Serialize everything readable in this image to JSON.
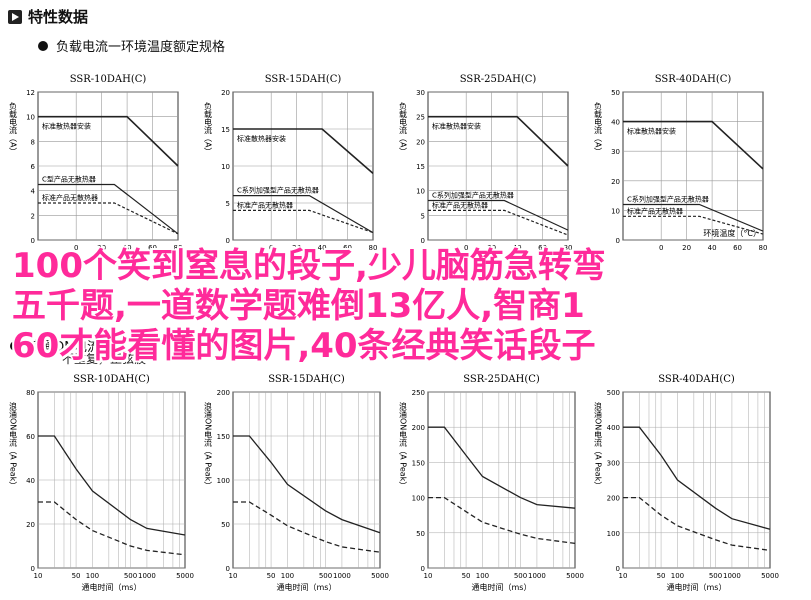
{
  "header": {
    "title": "特性数据"
  },
  "section1": {
    "bullet": "负载电流一环境温度额定规格"
  },
  "section2": {
    "bullet": "浪涌ON电流耐量",
    "note": "不重复，正弦波"
  },
  "top_charts": {
    "ylabel": "负载电流（A）",
    "xlabel": "环境温度（°C）",
    "xticks": [
      "0",
      "20",
      "40",
      "60",
      "80"
    ],
    "charts": [
      {
        "title": "SSR-10DAH(C)",
        "yticks": [
          "0",
          "2",
          "4",
          "6",
          "8",
          "10",
          "12"
        ],
        "labels": [
          "标准散热器安装",
          "C型产品无散热器",
          "标准产品无散热器"
        ]
      },
      {
        "title": "SSR-15DAH(C)",
        "yticks": [
          "0",
          "5",
          "10",
          "15",
          "20"
        ],
        "labels": [
          "标准散热器安装",
          "C系列加强型产品无散热器",
          "标准产品无散热器"
        ]
      },
      {
        "title": "SSR-25DAH(C)",
        "yticks": [
          "0",
          "5",
          "10",
          "15",
          "20",
          "25",
          "30"
        ],
        "labels": [
          "标准散热器安装",
          "C系列加强型产品无散热器",
          "标准产品无散热器"
        ]
      },
      {
        "title": "SSR-40DAH(C)",
        "yticks": [
          "0",
          "10",
          "20",
          "30",
          "40",
          "50"
        ],
        "labels": [
          "标准散热器安装",
          "C系列加强型产品无散热器",
          "标准产品无散热器"
        ]
      }
    ]
  },
  "bottom_charts": {
    "ylabel": "浪涌ON电流（A Peak）",
    "xlabel": "通电时间（ms）",
    "xticks": [
      "10",
      "50",
      "100",
      "500",
      "1000",
      "5000"
    ],
    "charts": [
      {
        "title": "SSR-10DAH(C)",
        "yticks": [
          "0",
          "20",
          "40",
          "60",
          "80"
        ]
      },
      {
        "title": "SSR-15DAH(C)",
        "yticks": [
          "0",
          "50",
          "100",
          "150",
          "200"
        ]
      },
      {
        "title": "SSR-25DAH(C)",
        "yticks": [
          "0",
          "50",
          "100",
          "150",
          "200",
          "250"
        ]
      },
      {
        "title": "SSR-40DAH(C)",
        "yticks": [
          "0",
          "100",
          "200",
          "300",
          "400",
          "500"
        ]
      }
    ]
  },
  "overlay": {
    "lines": [
      "100个笑到窒息的段子,少儿脑筋急转弯",
      "五千题,一道数学题难倒13亿人,智商1",
      "60才能看懂的图片,40条经典笑话段子"
    ]
  },
  "chart_data": [
    {
      "type": "line",
      "title": "SSR-10DAH(C)",
      "xlabel": "环境温度（°C）",
      "ylabel": "负载电流（A）",
      "xlim": [
        -30,
        80
      ],
      "ylim": [
        0,
        12
      ],
      "series": [
        {
          "name": "标准散热器安装",
          "x": [
            -30,
            40,
            80
          ],
          "y": [
            10,
            10,
            6
          ]
        },
        {
          "name": "C型产品无散热器",
          "x": [
            -30,
            30,
            80
          ],
          "y": [
            4.5,
            4.5,
            0.5
          ]
        },
        {
          "name": "标准产品无散热器",
          "x": [
            -30,
            30,
            80
          ],
          "y": [
            3,
            3,
            0.5
          ]
        }
      ]
    },
    {
      "type": "line",
      "title": "SSR-15DAH(C)",
      "xlabel": "环境温度（°C）",
      "ylabel": "负载电流（A）",
      "xlim": [
        -30,
        80
      ],
      "ylim": [
        0,
        20
      ],
      "series": [
        {
          "name": "标准散热器安装",
          "x": [
            -30,
            40,
            80
          ],
          "y": [
            15,
            15,
            9
          ]
        },
        {
          "name": "C系列加强型产品无散热器",
          "x": [
            -30,
            30,
            80
          ],
          "y": [
            6,
            6,
            1
          ]
        },
        {
          "name": "标准产品无散热器",
          "x": [
            -30,
            30,
            80
          ],
          "y": [
            4,
            4,
            1
          ]
        }
      ]
    },
    {
      "type": "line",
      "title": "SSR-25DAH(C)",
      "xlabel": "环境温度（°C）",
      "ylabel": "负载电流（A）",
      "xlim": [
        -30,
        80
      ],
      "ylim": [
        0,
        30
      ],
      "series": [
        {
          "name": "标准散热器安装",
          "x": [
            -30,
            40,
            80
          ],
          "y": [
            25,
            25,
            15
          ]
        },
        {
          "name": "C系列加强型产品无散热器",
          "x": [
            -30,
            30,
            80
          ],
          "y": [
            8,
            8,
            2
          ]
        },
        {
          "name": "标准产品无散热器",
          "x": [
            -30,
            30,
            80
          ],
          "y": [
            6,
            6,
            1
          ]
        }
      ]
    },
    {
      "type": "line",
      "title": "SSR-40DAH(C)",
      "xlabel": "环境温度（°C）",
      "ylabel": "负载电流（A）",
      "xlim": [
        -30,
        80
      ],
      "ylim": [
        0,
        50
      ],
      "series": [
        {
          "name": "标准散热器安装",
          "x": [
            -30,
            40,
            80
          ],
          "y": [
            40,
            40,
            24
          ]
        },
        {
          "name": "C系列加强型产品无散热器",
          "x": [
            -30,
            30,
            80
          ],
          "y": [
            12,
            12,
            3
          ]
        },
        {
          "name": "标准产品无散热器",
          "x": [
            -30,
            30,
            80
          ],
          "y": [
            8,
            8,
            2
          ]
        }
      ]
    },
    {
      "type": "line",
      "title": "SSR-10DAH(C)",
      "xlabel": "通电时间（ms）",
      "ylabel": "浪涌ON电流（A Peak）",
      "xscale": "log",
      "xlim": [
        10,
        5000
      ],
      "ylim": [
        0,
        80
      ],
      "series": [
        {
          "x": [
            10,
            20,
            50,
            100,
            500,
            1000,
            5000
          ],
          "y": [
            60,
            60,
            45,
            35,
            22,
            18,
            15
          ]
        },
        {
          "x": [
            10,
            20,
            50,
            100,
            500,
            1000,
            5000
          ],
          "y": [
            30,
            30,
            22,
            17,
            10,
            8,
            6
          ]
        }
      ]
    },
    {
      "type": "line",
      "title": "SSR-15DAH(C)",
      "xlabel": "通电时间（ms）",
      "ylabel": "浪涌ON电流（A Peak）",
      "xscale": "log",
      "xlim": [
        10,
        5000
      ],
      "ylim": [
        0,
        200
      ],
      "series": [
        {
          "x": [
            10,
            20,
            50,
            100,
            500,
            1000,
            5000
          ],
          "y": [
            150,
            150,
            120,
            95,
            65,
            55,
            40
          ]
        },
        {
          "x": [
            10,
            20,
            50,
            100,
            500,
            1000,
            5000
          ],
          "y": [
            75,
            75,
            60,
            48,
            30,
            24,
            18
          ]
        }
      ]
    },
    {
      "type": "line",
      "title": "SSR-25DAH(C)",
      "xlabel": "通电时间（ms）",
      "ylabel": "浪涌ON电流（A Peak）",
      "xscale": "log",
      "xlim": [
        10,
        5000
      ],
      "ylim": [
        0,
        250
      ],
      "series": [
        {
          "x": [
            10,
            20,
            50,
            100,
            500,
            1000,
            5000
          ],
          "y": [
            200,
            200,
            160,
            130,
            100,
            90,
            85
          ]
        },
        {
          "x": [
            10,
            20,
            50,
            100,
            500,
            1000,
            5000
          ],
          "y": [
            100,
            100,
            80,
            65,
            48,
            42,
            35
          ]
        }
      ]
    },
    {
      "type": "line",
      "title": "SSR-40DAH(C)",
      "xlabel": "通电时间（ms）",
      "ylabel": "浪涌ON电流（A Peak）",
      "xscale": "log",
      "xlim": [
        10,
        5000
      ],
      "ylim": [
        0,
        500
      ],
      "series": [
        {
          "x": [
            10,
            20,
            50,
            100,
            500,
            1000,
            5000
          ],
          "y": [
            400,
            400,
            320,
            250,
            170,
            140,
            110
          ]
        },
        {
          "x": [
            10,
            20,
            50,
            100,
            500,
            1000,
            5000
          ],
          "y": [
            200,
            200,
            150,
            120,
            80,
            65,
            50
          ]
        }
      ]
    }
  ]
}
